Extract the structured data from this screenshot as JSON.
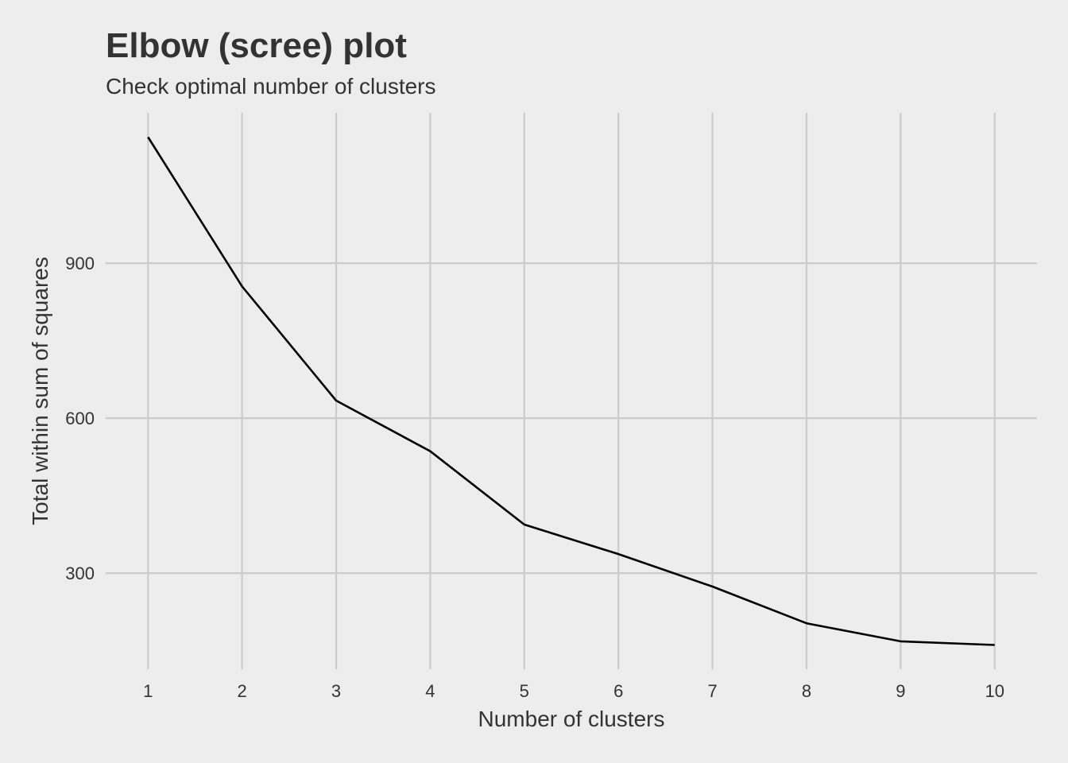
{
  "chart_data": {
    "type": "line",
    "title": "Elbow (scree) plot",
    "subtitle": "Check optimal number of clusters",
    "xlabel": "Number of clusters",
    "ylabel": "Total within sum of squares",
    "x": [
      1,
      2,
      3,
      4,
      5,
      6,
      7,
      8,
      9,
      10
    ],
    "series": [
      {
        "values": [
          1144,
          855,
          634,
          536,
          394,
          337,
          274,
          203,
          168,
          161
        ]
      }
    ],
    "xticks": [
      1,
      2,
      3,
      4,
      5,
      6,
      7,
      8,
      9,
      10
    ],
    "yticks": [
      300,
      600,
      900
    ],
    "xlim": [
      0.55,
      10.45
    ],
    "ylim": [
      114,
      1191
    ],
    "grid": true,
    "legend": "none",
    "line_color": "#000000",
    "grid_color": "#cbcbcb",
    "background_color": "#ededed"
  }
}
